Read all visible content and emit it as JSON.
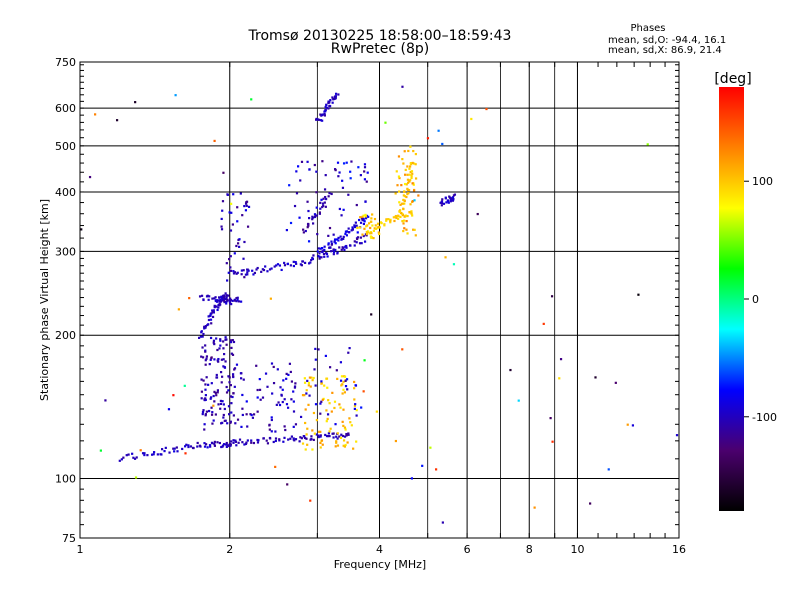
{
  "header": {
    "title_line1": "Tromsø 20130225 18:58:00–18:59:43",
    "title_line2": "RwPretec (8p)",
    "stats_title": "Phases",
    "stats_o": "mean, sd,O: -94.4, 16.1",
    "stats_x": "mean, sd,X:  86.9, 21.4"
  },
  "colorbar": {
    "label": "[deg]",
    "range": [
      -180,
      180
    ],
    "ticks": [
      -100,
      0,
      100
    ],
    "stops": [
      "#000000",
      "#4b006e",
      "#0000ff",
      "#00ffff",
      "#00ff00",
      "#ffff00",
      "#ff8000",
      "#ff0000"
    ]
  },
  "chart_data": {
    "type": "scatter",
    "title": "Tromsø 20130225 18:58:00–18:59:43",
    "subtitle": "RwPretec (8p)",
    "xlabel": "Frequency [MHz]",
    "ylabel": "Stationary phase Virtual Height [km]",
    "xscale": "log",
    "yscale": "log",
    "xlim": [
      1,
      16
    ],
    "ylim": [
      75,
      750
    ],
    "x_ticks": [
      1,
      2,
      4,
      6,
      8,
      10,
      16
    ],
    "x_minor_ticks": [
      3,
      5,
      7,
      9
    ],
    "y_ticks": [
      75,
      100,
      200,
      300,
      400,
      500,
      600,
      750
    ],
    "grid": true,
    "color_dimension": "phase [deg]",
    "traces": [
      {
        "freq": [
          1.2,
          1.4,
          1.6,
          1.8,
          1.95,
          2.05
        ],
        "height": [
          110,
          113,
          116,
          118,
          118,
          119
        ],
        "phase": -100
      },
      {
        "freq": [
          2.05,
          2.3,
          2.6,
          2.9,
          3.2,
          3.5
        ],
        "height": [
          119,
          120,
          121,
          122,
          123,
          124
        ],
        "phase": -105
      },
      {
        "freq": [
          1.75,
          1.82,
          1.88,
          1.93,
          1.97
        ],
        "height": [
          200,
          215,
          230,
          240,
          242
        ],
        "phase": -100
      },
      {
        "freq": [
          1.75,
          1.9,
          2.0,
          2.1
        ],
        "height": [
          240,
          238,
          236,
          237
        ],
        "phase": -100
      },
      {
        "freq": [
          2.0,
          2.2,
          2.5,
          2.8,
          3.1,
          3.4,
          3.8
        ],
        "height": [
          270,
          272,
          278,
          285,
          295,
          305,
          325
        ],
        "phase": -100
      },
      {
        "freq": [
          3.0,
          3.2,
          3.4,
          3.6,
          3.8
        ],
        "height": [
          300,
          310,
          325,
          340,
          355
        ],
        "phase": -90
      },
      {
        "freq": [
          2.8,
          3.0,
          3.2
        ],
        "height": [
          330,
          360,
          400
        ],
        "phase": -110
      },
      {
        "freq": [
          3.8,
          4.1,
          4.4,
          4.7
        ],
        "height": [
          330,
          345,
          355,
          360
        ],
        "phase": 100
      },
      {
        "freq": [
          4.4,
          4.5,
          4.6,
          4.7
        ],
        "height": [
          360,
          390,
          430,
          470
        ],
        "phase": 100
      },
      {
        "freq": [
          5.3,
          5.5,
          5.7
        ],
        "height": [
          380,
          385,
          390
        ],
        "phase": -100
      },
      {
        "freq": [
          3.0,
          3.1,
          3.2,
          3.3
        ],
        "height": [
          560,
          590,
          620,
          640
        ],
        "phase": -100
      }
    ],
    "clusters": [
      {
        "freq_range": [
          1.75,
          2.05
        ],
        "height_range": [
          130,
          200
        ],
        "count": 130,
        "phase_range": [
          -120,
          -90
        ]
      },
      {
        "freq_range": [
          2.05,
          2.8
        ],
        "height_range": [
          125,
          175
        ],
        "count": 70,
        "phase_range": [
          -120,
          -80
        ]
      },
      {
        "freq_range": [
          2.8,
          3.6
        ],
        "height_range": [
          115,
          165
        ],
        "count": 90,
        "phase_range": [
          80,
          120
        ]
      },
      {
        "freq_range": [
          2.8,
          3.6
        ],
        "height_range": [
          130,
          190
        ],
        "count": 30,
        "phase_range": [
          -120,
          -80
        ]
      },
      {
        "freq_range": [
          1.9,
          2.2
        ],
        "height_range": [
          250,
          400
        ],
        "count": 40,
        "phase_range": [
          -120,
          -80
        ]
      },
      {
        "freq_range": [
          2.6,
          3.8
        ],
        "height_range": [
          300,
          470
        ],
        "count": 70,
        "phase_range": [
          -120,
          -70
        ]
      },
      {
        "freq_range": [
          3.6,
          4.0
        ],
        "height_range": [
          320,
          360
        ],
        "count": 30,
        "phase_range": [
          80,
          120
        ]
      },
      {
        "freq_range": [
          4.3,
          4.8
        ],
        "height_range": [
          320,
          500
        ],
        "count": 45,
        "phase_range": [
          80,
          130
        ]
      },
      {
        "freq_range": [
          1.0,
          16.0
        ],
        "height_range": [
          80,
          700
        ],
        "count": 70,
        "phase_range": [
          -180,
          180
        ]
      }
    ]
  }
}
